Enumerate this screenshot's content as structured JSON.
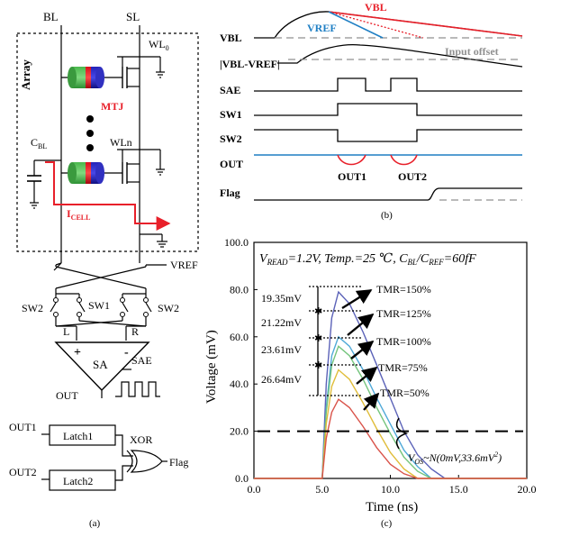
{
  "panel_a": {
    "caption": "(a)",
    "bl": "BL",
    "sl": "SL",
    "array": "Array",
    "wl0_base": "WL",
    "wl0_sub": "0",
    "wln": "WLn",
    "mtj": "MTJ",
    "cbl_base": "C",
    "cbl_sub": "BL",
    "icell_base": "I",
    "icell_sub": "CELL",
    "vref": "VREF",
    "sw2_left": "SW2",
    "sw1": "SW1",
    "sw2_right": "SW2",
    "l": "L",
    "r": "R",
    "plus": "+",
    "minus": "-",
    "sa": "SA",
    "sae": "SAE",
    "out": "OUT",
    "out1": "OUT1",
    "out2": "OUT2",
    "latch1": "Latch1",
    "latch2": "Latch2",
    "xor": "XOR",
    "flag": "Flag"
  },
  "panel_b": {
    "caption": "(b)",
    "signals": [
      "VBL",
      "|VBL-VREF|",
      "SAE",
      "SW1",
      "SW2",
      "OUT",
      "Flag"
    ],
    "vbl_tag": "VBL",
    "vref_tag": "VREF",
    "input_offset": "Input offset",
    "out1": "OUT1",
    "out2": "OUT2",
    "colors": {
      "vbl": "#e8202a",
      "vref": "#1f7fc4",
      "offset": "#909090"
    }
  },
  "panel_c": {
    "caption": "(c)",
    "annotation_prefix": "V",
    "annotation_sub": "READ",
    "annotation_rest": "=1.2V, Temp.=25 ℃, C",
    "annotation_sub2": "BL",
    "annotation_slash": "/C",
    "annotation_sub3": "REF",
    "annotation_end": "=60fF",
    "gaps": [
      "19.35mV",
      "21.22mV",
      "23.61mV",
      "26.64mV"
    ],
    "vos_base": "V",
    "vos_sub": "OS",
    "vos_rest": "~N(0mV,33.6mV",
    "vos_sup": "2",
    "vos_close": ")"
  },
  "chart_data": {
    "type": "line",
    "xlabel": "Time (ns)",
    "ylabel": "Voltage (mV)",
    "xlim": [
      0,
      20
    ],
    "ylim": [
      0,
      100
    ],
    "x_ticks": [
      "0.0",
      "5.0",
      "10.0",
      "15.0",
      "20.0"
    ],
    "y_ticks": [
      "0.0",
      "20.0",
      "40.0",
      "60.0",
      "80.0",
      "100.0"
    ],
    "offset_line_y": 20,
    "series": [
      {
        "name": "TMR=150%",
        "color": "#5b62b8",
        "peak": 79.0,
        "x": [
          5.0,
          5.3,
          5.7,
          6.2,
          7.0,
          8.0,
          9.0,
          10.0,
          11.0,
          12.0,
          13.0,
          14.0
        ],
        "y": [
          0,
          40,
          68,
          79,
          74,
          62,
          48,
          34,
          20,
          10,
          4,
          0
        ]
      },
      {
        "name": "TMR=125%",
        "color": "#4fa9d8",
        "peak": 60.0,
        "x": [
          5.0,
          5.3,
          5.7,
          6.2,
          7.0,
          8.0,
          9.0,
          10.0,
          11.0,
          12.0,
          13.0
        ],
        "y": [
          0,
          30,
          52,
          60,
          56,
          46,
          34,
          23,
          12,
          5,
          0
        ]
      },
      {
        "name": "TMR=100%",
        "color": "#74c47c",
        "peak": 56.0,
        "x": [
          5.0,
          5.3,
          5.7,
          6.2,
          7.0,
          8.0,
          9.0,
          10.0,
          11.0,
          12.0,
          13.0
        ],
        "y": [
          0,
          28,
          48,
          56,
          52,
          42,
          30,
          19,
          9,
          3,
          0
        ]
      },
      {
        "name": "TMR=75%",
        "color": "#e0bd3a",
        "peak": 46.0,
        "x": [
          5.0,
          5.3,
          5.7,
          6.2,
          7.0,
          8.0,
          9.0,
          10.0,
          11.0,
          12.0
        ],
        "y": [
          0,
          23,
          39,
          46,
          42,
          32,
          21,
          11,
          4,
          0
        ]
      },
      {
        "name": "TMR=50%",
        "color": "#d9534a",
        "peak": 33.5,
        "x": [
          5.0,
          5.3,
          5.7,
          6.2,
          7.0,
          8.0,
          9.0,
          10.0,
          11.0,
          12.0
        ],
        "y": [
          0,
          17,
          28,
          33.5,
          30,
          22,
          13,
          6,
          2,
          0
        ]
      }
    ]
  }
}
